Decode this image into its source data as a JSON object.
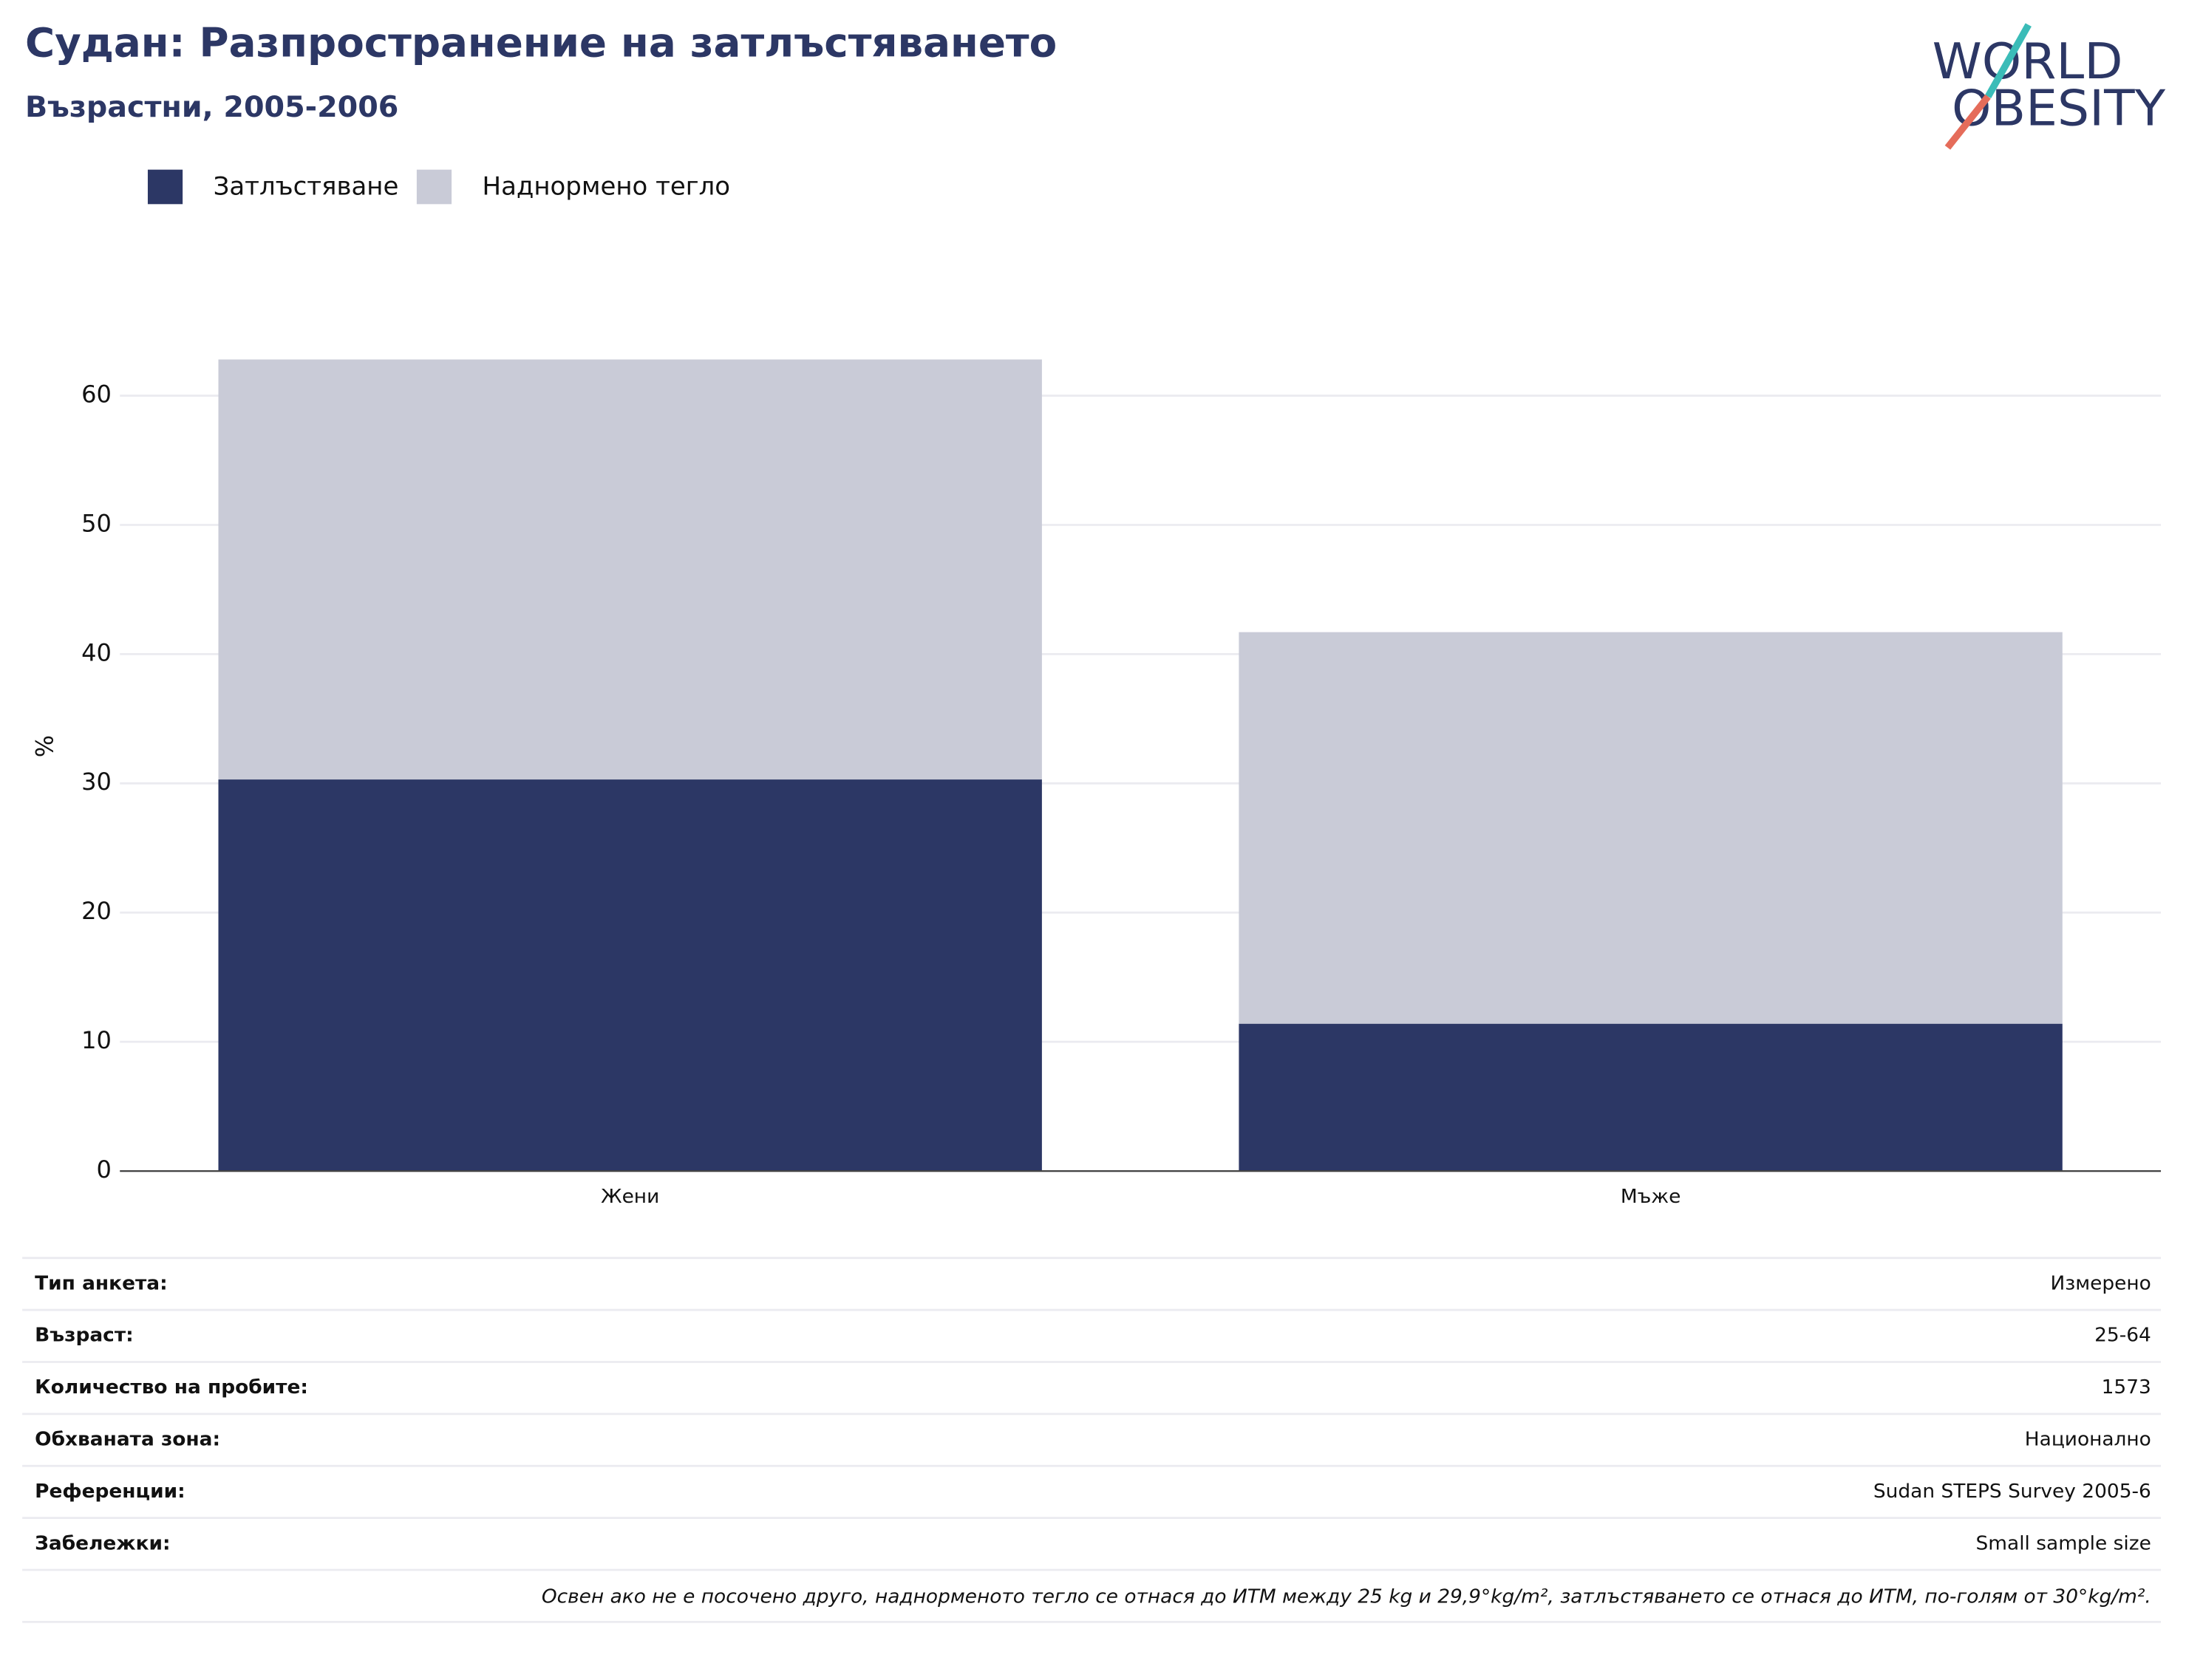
{
  "chart_data": {
    "type": "stacked_bar",
    "title": "Судан: Разпространение на затлъстяването",
    "subtitle": "Възрастни, 2005-2006",
    "y_label": "%",
    "categories": [
      "Жени",
      "Мъже"
    ],
    "series": [
      {
        "name": "Затлъстяване",
        "color": "#2c3765",
        "values": [
          30.3,
          11.4
        ]
      },
      {
        "name": "Наднормено тегло",
        "color": "#c9cbd7",
        "values": [
          32.5,
          30.3
        ]
      }
    ],
    "ylim": [
      0,
      65
    ],
    "yticks": [
      0,
      10,
      20,
      30,
      40,
      50,
      60
    ],
    "grid": true,
    "legend": "top-left"
  },
  "logo": [
    "WORLD",
    "OBESITY"
  ],
  "info_table": {
    "rows": [
      [
        "Тип анкета:",
        "Измерено"
      ],
      [
        "Възраст:",
        "25-64"
      ],
      [
        "Количество на пробите:",
        "1573"
      ],
      [
        "Обхваната зона:",
        "Национално"
      ],
      [
        "Референции:",
        "Sudan STEPS Survey 2005-6"
      ],
      [
        "Забележки:",
        "Small sample size"
      ]
    ],
    "footnote": "Освен ако не е посочено друго, наднорменото тегло се отнася до ИТМ между 25 kg и 29,9°kg/m², затлъстяването се отнася до ИТМ, по-голям от 30°kg/m²."
  }
}
